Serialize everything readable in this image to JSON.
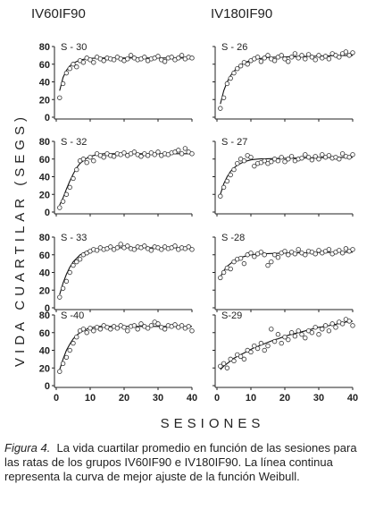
{
  "columns": [
    "IV60IF90",
    "IV180IF90"
  ],
  "y_label": "VIDA CUARTILAR (SEGS)",
  "x_label": "SESIONES",
  "caption_label": "Figura 4.",
  "caption_text": "La vida cuartilar promedio en función de las sesiones para las ratas de los grupos IV60IF90 e IV180IF90. La línea continua representa la curva de mejor ajuste de la función Weibull.",
  "chart_data": [
    {
      "type": "scatter",
      "title": "S - 30",
      "xlim": [
        0,
        40
      ],
      "ylim": [
        0,
        80
      ],
      "xticks": [
        0,
        10,
        20,
        30,
        40
      ],
      "yticks": [
        0,
        20,
        40,
        60,
        80
      ],
      "x": [
        1,
        2,
        3,
        4,
        5,
        6,
        7,
        8,
        9,
        10,
        11,
        12,
        13,
        14,
        15,
        16,
        17,
        18,
        19,
        20,
        21,
        22,
        23,
        24,
        25,
        26,
        27,
        28,
        29,
        30,
        31,
        32,
        33,
        34,
        35,
        36,
        37,
        38,
        39,
        40
      ],
      "series": [
        {
          "type": "scatter",
          "color": "#333333",
          "values": [
            22,
            38,
            50,
            55,
            60,
            57,
            64,
            62,
            67,
            65,
            62,
            68,
            66,
            64,
            67,
            66,
            65,
            68,
            66,
            64,
            66,
            70,
            67,
            65,
            66,
            68,
            64,
            66,
            67,
            69,
            65,
            63,
            67,
            68,
            65,
            67,
            70,
            66,
            68,
            67
          ]
        },
        {
          "type": "line",
          "color": "#111111",
          "values": [
            30,
            45,
            53,
            58,
            61,
            63,
            64.5,
            65.5,
            66,
            66.5,
            66.7,
            66.8,
            66.9,
            67,
            67,
            67,
            67,
            67,
            67,
            67,
            67,
            67,
            67,
            67,
            67,
            67,
            67,
            67,
            67,
            67,
            67,
            67,
            67,
            67,
            67,
            67,
            67,
            67,
            67,
            67
          ]
        }
      ]
    },
    {
      "type": "scatter",
      "title": "S - 26",
      "xlim": [
        0,
        40
      ],
      "ylim": [
        0,
        80
      ],
      "xticks": [
        0,
        10,
        20,
        30,
        40
      ],
      "yticks": [
        0,
        20,
        40,
        60,
        80
      ],
      "x": [
        1,
        2,
        3,
        4,
        5,
        6,
        7,
        8,
        9,
        10,
        11,
        12,
        13,
        14,
        15,
        16,
        17,
        18,
        19,
        20,
        21,
        22,
        23,
        24,
        25,
        26,
        27,
        28,
        29,
        30,
        31,
        32,
        33,
        34,
        35,
        36,
        37,
        38,
        39,
        40
      ],
      "series": [
        {
          "type": "scatter",
          "color": "#333333",
          "values": [
            10,
            22,
            38,
            44,
            50,
            55,
            58,
            62,
            60,
            64,
            66,
            68,
            63,
            67,
            70,
            66,
            64,
            68,
            70,
            66,
            63,
            68,
            72,
            67,
            70,
            66,
            71,
            68,
            65,
            70,
            67,
            69,
            66,
            72,
            70,
            68,
            72,
            74,
            70,
            73
          ]
        },
        {
          "type": "line",
          "color": "#111111",
          "values": [
            15,
            30,
            40,
            47,
            52,
            56,
            59,
            61,
            63,
            64,
            65,
            66,
            66.5,
            67,
            67.5,
            67.7,
            67.9,
            68,
            68.1,
            68.2,
            68.3,
            68.4,
            68.5,
            68.6,
            68.7,
            68.8,
            68.9,
            69,
            69.1,
            69.2,
            69.3,
            69.4,
            69.5,
            69.6,
            69.7,
            69.7,
            69.8,
            69.8,
            69.9,
            70
          ]
        }
      ]
    },
    {
      "type": "scatter",
      "title": "S - 32",
      "xlim": [
        0,
        40
      ],
      "ylim": [
        0,
        80
      ],
      "xticks": [
        0,
        10,
        20,
        30,
        40
      ],
      "yticks": [
        0,
        20,
        40,
        60,
        80
      ],
      "x": [
        1,
        2,
        3,
        4,
        5,
        6,
        7,
        8,
        9,
        10,
        11,
        12,
        13,
        14,
        15,
        16,
        17,
        18,
        19,
        20,
        21,
        22,
        23,
        24,
        25,
        26,
        27,
        28,
        29,
        30,
        31,
        32,
        33,
        34,
        35,
        36,
        37,
        38,
        39,
        40
      ],
      "series": [
        {
          "type": "scatter",
          "color": "#333333",
          "values": [
            5,
            12,
            20,
            28,
            38,
            48,
            58,
            60,
            56,
            62,
            58,
            66,
            64,
            62,
            66,
            64,
            63,
            66,
            65,
            67,
            64,
            66,
            68,
            65,
            63,
            66,
            64,
            67,
            65,
            68,
            64,
            66,
            65,
            67,
            68,
            70,
            66,
            72,
            68,
            66
          ]
        },
        {
          "type": "line",
          "color": "#111111",
          "values": [
            8,
            16,
            26,
            35,
            43,
            50,
            55,
            58,
            61,
            63,
            64,
            65,
            65.5,
            66,
            66,
            66,
            66,
            66,
            66,
            66,
            66,
            66,
            66,
            66,
            66,
            66,
            66,
            66,
            66,
            66,
            66,
            66,
            66,
            66,
            66,
            66,
            66,
            66,
            66,
            66
          ]
        }
      ]
    },
    {
      "type": "scatter",
      "title": "S - 27",
      "xlim": [
        0,
        40
      ],
      "ylim": [
        0,
        80
      ],
      "xticks": [
        0,
        10,
        20,
        30,
        40
      ],
      "yticks": [
        0,
        20,
        40,
        60,
        80
      ],
      "x": [
        1,
        2,
        3,
        4,
        5,
        6,
        7,
        8,
        9,
        10,
        11,
        12,
        13,
        14,
        15,
        16,
        17,
        18,
        19,
        20,
        21,
        22,
        23,
        24,
        25,
        26,
        27,
        28,
        29,
        30,
        31,
        32,
        33,
        34,
        35,
        36,
        37,
        38,
        39,
        40
      ],
      "series": [
        {
          "type": "scatter",
          "color": "#333333",
          "values": [
            18,
            28,
            35,
            42,
            48,
            55,
            60,
            58,
            64,
            62,
            52,
            55,
            56,
            58,
            55,
            57,
            60,
            58,
            62,
            57,
            60,
            63,
            58,
            60,
            61,
            65,
            62,
            59,
            63,
            60,
            65,
            62,
            64,
            61,
            62,
            60,
            66,
            63,
            62,
            65
          ]
        },
        {
          "type": "line",
          "color": "#111111",
          "values": [
            20,
            32,
            40,
            46,
            50,
            53,
            55,
            57,
            58,
            59,
            59.5,
            60,
            60.2,
            60.3,
            60.4,
            60.5,
            60.6,
            60.7,
            60.8,
            60.9,
            61,
            61,
            61.1,
            61.2,
            61.3,
            61.3,
            61.4,
            61.5,
            61.5,
            61.6,
            61.6,
            61.7,
            61.7,
            61.8,
            61.8,
            61.9,
            61.9,
            62,
            62,
            62
          ]
        }
      ]
    },
    {
      "type": "scatter",
      "title": "S - 33",
      "xlim": [
        0,
        40
      ],
      "ylim": [
        0,
        80
      ],
      "xticks": [
        0,
        10,
        20,
        30,
        40
      ],
      "yticks": [
        0,
        20,
        40,
        60,
        80
      ],
      "x": [
        1,
        2,
        3,
        4,
        5,
        6,
        7,
        8,
        9,
        10,
        11,
        12,
        13,
        14,
        15,
        16,
        17,
        18,
        19,
        20,
        21,
        22,
        23,
        24,
        25,
        26,
        27,
        28,
        29,
        30,
        31,
        32,
        33,
        34,
        35,
        36,
        37,
        38,
        39,
        40
      ],
      "series": [
        {
          "type": "scatter",
          "color": "#333333",
          "values": [
            12,
            22,
            30,
            40,
            48,
            52,
            55,
            60,
            62,
            64,
            66,
            65,
            68,
            66,
            67,
            69,
            66,
            68,
            72,
            68,
            70,
            67,
            66,
            69,
            68,
            70,
            67,
            65,
            69,
            68,
            66,
            69,
            67,
            68,
            70,
            66,
            68,
            67,
            69,
            66
          ]
        },
        {
          "type": "line",
          "color": "#111111",
          "values": [
            15,
            28,
            38,
            46,
            52,
            56,
            60,
            62,
            64,
            65,
            66,
            66.5,
            67,
            67.5,
            67.7,
            67.8,
            67.9,
            68,
            68,
            68,
            68,
            68,
            68,
            68,
            68,
            68,
            68,
            68,
            68,
            68,
            68,
            68,
            68,
            68,
            68,
            68,
            68,
            68,
            68,
            68
          ]
        }
      ]
    },
    {
      "type": "scatter",
      "title": "S -28",
      "xlim": [
        0,
        40
      ],
      "ylim": [
        0,
        80
      ],
      "xticks": [
        0,
        10,
        20,
        30,
        40
      ],
      "yticks": [
        0,
        20,
        40,
        60,
        80
      ],
      "x": [
        1,
        2,
        3,
        4,
        5,
        6,
        7,
        8,
        9,
        10,
        11,
        12,
        13,
        14,
        15,
        16,
        17,
        18,
        19,
        20,
        21,
        22,
        23,
        24,
        25,
        26,
        27,
        28,
        29,
        30,
        31,
        32,
        33,
        34,
        35,
        36,
        37,
        38,
        39,
        40
      ],
      "series": [
        {
          "type": "scatter",
          "color": "#333333",
          "values": [
            34,
            40,
            45,
            44,
            52,
            55,
            56,
            50,
            60,
            62,
            58,
            61,
            63,
            60,
            48,
            52,
            60,
            57,
            62,
            64,
            60,
            63,
            61,
            66,
            62,
            60,
            64,
            63,
            61,
            65,
            62,
            64,
            66,
            61,
            63,
            65,
            62,
            67,
            64,
            66
          ]
        },
        {
          "type": "line",
          "color": "#111111",
          "values": [
            35,
            42,
            47,
            50,
            53,
            55,
            57,
            58,
            59,
            60,
            60.5,
            61,
            61.2,
            61.3,
            61.4,
            61.5,
            61.6,
            61.7,
            61.8,
            61.9,
            62,
            62,
            62.1,
            62.2,
            62.3,
            62.3,
            62.4,
            62.5,
            62.5,
            62.6,
            62.6,
            62.7,
            62.7,
            62.8,
            62.8,
            62.9,
            62.9,
            63,
            63,
            63
          ]
        }
      ]
    },
    {
      "type": "scatter",
      "title": "S -40",
      "xlim": [
        0,
        40
      ],
      "ylim": [
        0,
        80
      ],
      "xticks": [
        0,
        10,
        20,
        30,
        40
      ],
      "yticks": [
        0,
        20,
        40,
        60,
        80
      ],
      "x": [
        1,
        2,
        3,
        4,
        5,
        6,
        7,
        8,
        9,
        10,
        11,
        12,
        13,
        14,
        15,
        16,
        17,
        18,
        19,
        20,
        21,
        22,
        23,
        24,
        25,
        26,
        27,
        28,
        29,
        30,
        31,
        32,
        33,
        34,
        35,
        36,
        37,
        38,
        39,
        40
      ],
      "series": [
        {
          "type": "scatter",
          "color": "#333333",
          "values": [
            16,
            25,
            32,
            40,
            48,
            55,
            62,
            64,
            60,
            65,
            62,
            66,
            64,
            68,
            66,
            64,
            67,
            65,
            68,
            66,
            62,
            67,
            68,
            64,
            70,
            67,
            65,
            68,
            72,
            70,
            66,
            64,
            68,
            67,
            69,
            66,
            68,
            65,
            67,
            62
          ]
        },
        {
          "type": "line",
          "color": "#111111",
          "values": [
            18,
            30,
            40,
            47,
            53,
            57,
            60,
            62,
            64,
            65,
            66,
            66.5,
            67,
            67,
            67,
            67,
            67,
            67,
            67,
            67,
            67,
            67,
            67,
            67,
            67,
            67,
            67,
            67,
            67,
            67,
            67,
            67,
            67,
            67,
            67,
            67,
            67,
            67,
            67,
            67
          ]
        }
      ]
    },
    {
      "type": "scatter",
      "title": "S-29",
      "xlim": [
        0,
        40
      ],
      "ylim": [
        0,
        80
      ],
      "xticks": [
        0,
        10,
        20,
        30,
        40
      ],
      "yticks": [
        0,
        20,
        40,
        60,
        80
      ],
      "x": [
        1,
        2,
        3,
        4,
        5,
        6,
        7,
        8,
        9,
        10,
        11,
        12,
        13,
        14,
        15,
        16,
        17,
        18,
        19,
        20,
        21,
        22,
        23,
        24,
        25,
        26,
        27,
        28,
        29,
        30,
        31,
        32,
        33,
        34,
        35,
        36,
        37,
        38,
        39,
        40
      ],
      "series": [
        {
          "type": "scatter",
          "color": "#333333",
          "values": [
            22,
            25,
            20,
            30,
            28,
            35,
            33,
            30,
            40,
            38,
            45,
            42,
            48,
            40,
            45,
            64,
            50,
            58,
            48,
            55,
            52,
            60,
            56,
            62,
            58,
            54,
            62,
            60,
            66,
            58,
            64,
            68,
            62,
            70,
            66,
            72,
            70,
            75,
            73,
            68
          ]
        },
        {
          "type": "line",
          "color": "#111111",
          "values": [
            18,
            22,
            25,
            28,
            31,
            33,
            35,
            37,
            39,
            41,
            43,
            44.5,
            46,
            47.5,
            49,
            50.5,
            52,
            53,
            54.5,
            55.5,
            57,
            58,
            59,
            60,
            61,
            62,
            63,
            64,
            65,
            66,
            66.5,
            67.5,
            68,
            69,
            69.5,
            70.5,
            71,
            72,
            72.5,
            73
          ]
        }
      ]
    }
  ]
}
